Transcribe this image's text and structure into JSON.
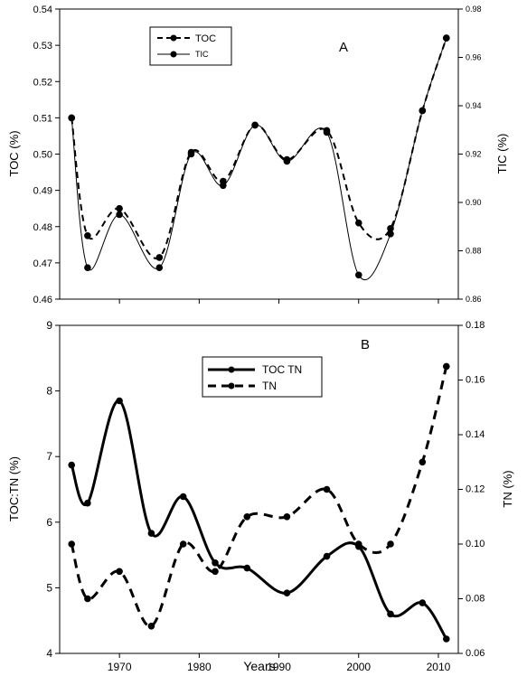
{
  "chart_data": [
    {
      "type": "line",
      "panel_label": "A",
      "ylabel": "TOC (%)",
      "ylabel_right": "TIC (%)",
      "ylim": [
        0.46,
        0.54
      ],
      "yticks": [
        "0.46",
        "0.47",
        "0.48",
        "0.49",
        "0.50",
        "0.51",
        "0.52",
        "0.53",
        "0.54"
      ],
      "ylim_right": [
        0.86,
        0.98
      ],
      "yticks_right": [
        "0.86",
        "0.88",
        "0.90",
        "0.92",
        "0.94",
        "0.96",
        "0.98"
      ],
      "xlim": [
        1962.5,
        2012.5
      ],
      "legend_position": "top-left",
      "series": [
        {
          "name": "TOC",
          "axis": "left",
          "style": "dashed",
          "x": [
            1964,
            1966,
            1970,
            1975,
            1979,
            1983,
            1987,
            1991,
            1996,
            2000,
            2004,
            2008,
            2011
          ],
          "values": [
            0.51,
            0.4775,
            0.485,
            0.4715,
            0.5005,
            0.4925,
            0.508,
            0.4985,
            0.5065,
            0.481,
            0.4795,
            0.512,
            0.532
          ]
        },
        {
          "name": "TIC",
          "axis": "right",
          "style": "solid",
          "x": [
            1964,
            1966,
            1970,
            1975,
            1979,
            1983,
            1987,
            1991,
            1996,
            2000,
            2004,
            2008,
            2011
          ],
          "values": [
            0.935,
            0.873,
            0.895,
            0.873,
            0.92,
            0.907,
            0.932,
            0.917,
            0.929,
            0.87,
            0.887,
            0.938,
            0.968
          ]
        }
      ]
    },
    {
      "type": "line",
      "panel_label": "B",
      "xlabel": "Years",
      "ylabel": "TOC:TN (%)",
      "ylabel_right": "TN (%)",
      "ylim": [
        4,
        9
      ],
      "yticks": [
        "4",
        "5",
        "6",
        "7",
        "8",
        "9"
      ],
      "ylim_right": [
        0.06,
        0.18
      ],
      "yticks_right": [
        "0.06",
        "0.08",
        "0.10",
        "0.12",
        "0.14",
        "0.16",
        "0.18"
      ],
      "xlim": [
        1962.5,
        2012.5
      ],
      "xticks": [
        "1970",
        "1980",
        "1990",
        "2000",
        "2010"
      ],
      "legend_position": "top-center",
      "series": [
        {
          "name": "TOC TN",
          "axis": "left",
          "style": "solid",
          "x": [
            1964,
            1966,
            1970,
            1974,
            1978,
            1982,
            1986,
            1991,
            1996,
            2000,
            2004,
            2008,
            2011
          ],
          "values": [
            6.87,
            6.29,
            7.85,
            5.83,
            6.39,
            5.38,
            5.3,
            4.92,
            5.48,
            5.63,
            4.6,
            4.77,
            4.22
          ]
        },
        {
          "name": "TN",
          "axis": "right",
          "style": "dashed",
          "x": [
            1964,
            1966,
            1970,
            1974,
            1978,
            1982,
            1986,
            1991,
            1996,
            2000,
            2004,
            2008,
            2011
          ],
          "values": [
            0.1,
            0.08,
            0.09,
            0.07,
            0.1,
            0.09,
            0.11,
            0.11,
            0.12,
            0.1,
            0.1,
            0.13,
            0.165
          ]
        }
      ]
    }
  ]
}
